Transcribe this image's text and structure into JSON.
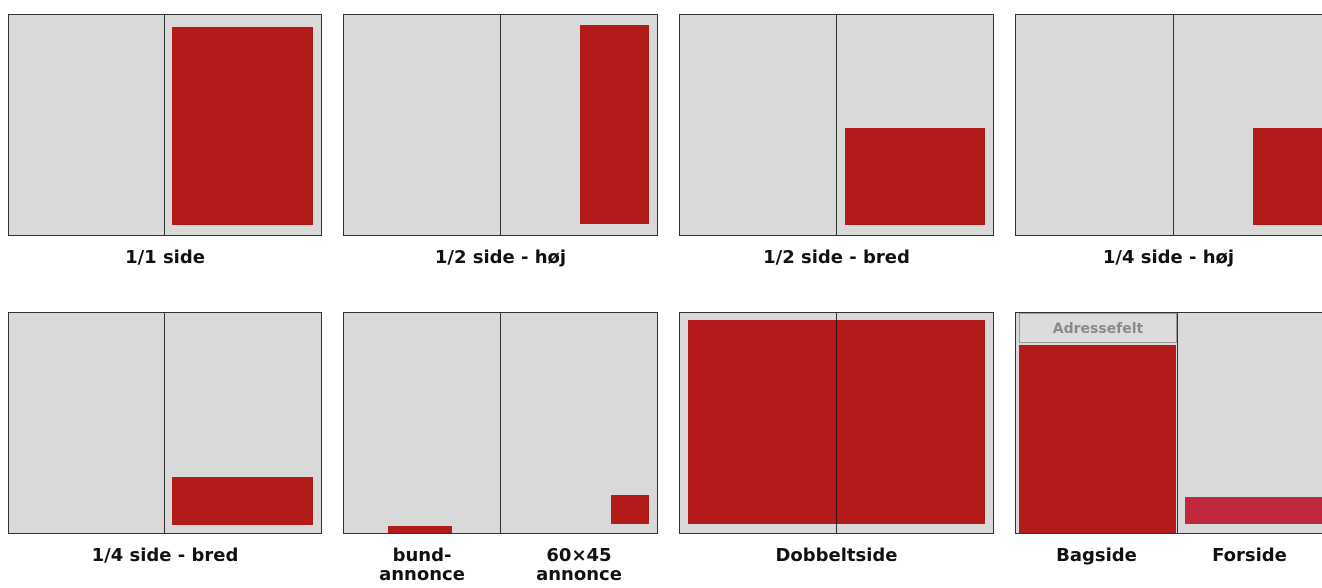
{
  "labels": {
    "full_page": "1/1 side",
    "half_tall": "1/2 side - høj",
    "half_wide": "1/2 side - bred",
    "quarter_tall": "1/4 side - høj",
    "quarter_wide": "1/4 side - bred",
    "bottom_ad": "bund-\nannonce",
    "size_ad": "60×45\nannonce",
    "double_page": "Dobbeltside",
    "back_page": "Bagside",
    "front_page": "Forside",
    "address_field": "Adressefelt"
  },
  "colors": {
    "page_background": "#d9d9d9",
    "ad_fill": "#b31b1b",
    "front_strip": "#c0283e",
    "address_text": "#8a8a8a"
  }
}
